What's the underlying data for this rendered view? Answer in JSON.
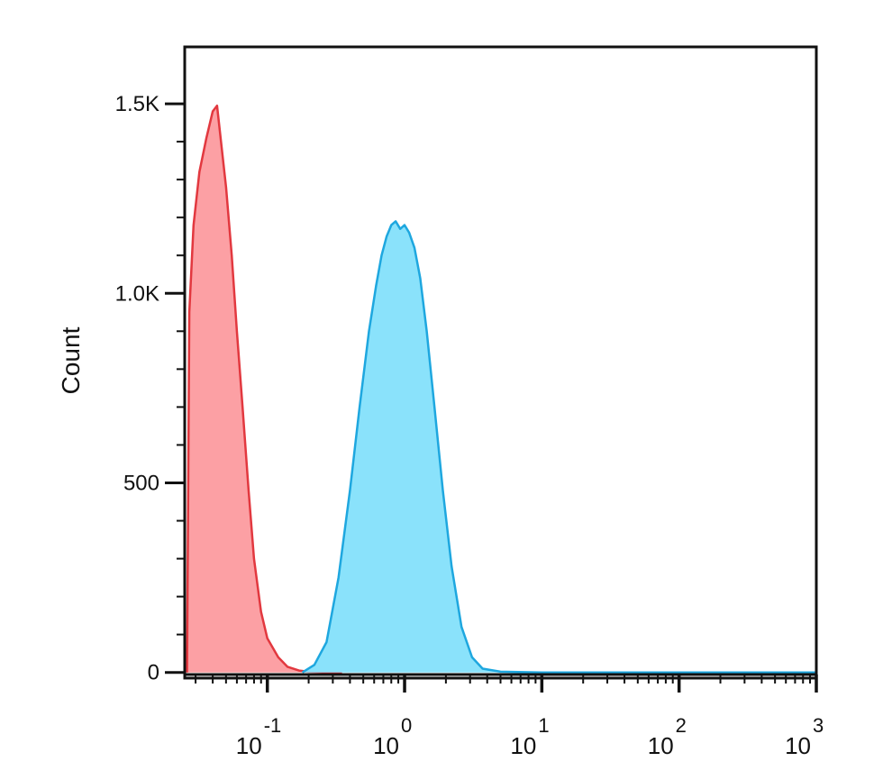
{
  "chart_data": {
    "type": "area",
    "title": "",
    "xlabel": "",
    "ylabel": "Count",
    "x_scale": "log",
    "xlim": [
      0.025,
      1000
    ],
    "ylim": [
      -15,
      1650
    ],
    "grid": false,
    "legend": "none",
    "y_ticks": [
      {
        "value": 0,
        "label": "0"
      },
      {
        "value": 500,
        "label": "500"
      },
      {
        "value": 1000,
        "label": "1.0K"
      },
      {
        "value": 1500,
        "label": "1.5K"
      }
    ],
    "x_ticks": [
      {
        "value": 0.1,
        "base": "10",
        "exp": "-1"
      },
      {
        "value": 1,
        "base": "10",
        "exp": "0"
      },
      {
        "value": 10,
        "base": "10",
        "exp": "1"
      },
      {
        "value": 100,
        "base": "10",
        "exp": "2"
      },
      {
        "value": 1000,
        "base": "10",
        "exp": "3"
      }
    ],
    "series": [
      {
        "color": "#e2383f",
        "fill": "#fca0a4",
        "points": [
          [
            0.026,
            0
          ],
          [
            0.027,
            950
          ],
          [
            0.029,
            1180
          ],
          [
            0.032,
            1320
          ],
          [
            0.036,
            1410
          ],
          [
            0.04,
            1480
          ],
          [
            0.043,
            1495
          ],
          [
            0.046,
            1400
          ],
          [
            0.05,
            1280
          ],
          [
            0.055,
            1100
          ],
          [
            0.06,
            900
          ],
          [
            0.066,
            700
          ],
          [
            0.073,
            480
          ],
          [
            0.08,
            300
          ],
          [
            0.09,
            160
          ],
          [
            0.1,
            90
          ],
          [
            0.12,
            40
          ],
          [
            0.14,
            15
          ],
          [
            0.17,
            5
          ],
          [
            0.2,
            2
          ],
          [
            0.35,
            0
          ]
        ]
      },
      {
        "color": "#1ea7df",
        "fill": "#8ae2fb",
        "points": [
          [
            0.18,
            0
          ],
          [
            0.22,
            20
          ],
          [
            0.27,
            80
          ],
          [
            0.33,
            250
          ],
          [
            0.4,
            480
          ],
          [
            0.47,
            700
          ],
          [
            0.55,
            900
          ],
          [
            0.62,
            1020
          ],
          [
            0.68,
            1100
          ],
          [
            0.74,
            1150
          ],
          [
            0.8,
            1180
          ],
          [
            0.86,
            1190
          ],
          [
            0.93,
            1170
          ],
          [
            1.0,
            1180
          ],
          [
            1.08,
            1160
          ],
          [
            1.18,
            1120
          ],
          [
            1.3,
            1040
          ],
          [
            1.45,
            900
          ],
          [
            1.65,
            700
          ],
          [
            1.9,
            480
          ],
          [
            2.2,
            280
          ],
          [
            2.6,
            120
          ],
          [
            3.1,
            40
          ],
          [
            3.7,
            10
          ],
          [
            5.0,
            2
          ],
          [
            10,
            0
          ],
          [
            1000,
            0
          ]
        ]
      }
    ]
  }
}
